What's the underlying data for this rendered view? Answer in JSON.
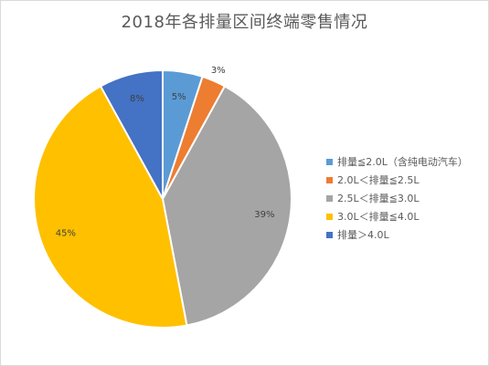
{
  "chart_data": {
    "type": "pie",
    "title": "2018年各排量区间终端零售情况",
    "categories": [
      "排量≦2.0L（含纯电动汽车）",
      "2.0L＜排量≦2.5L",
      "2.5L＜排量≦3.0L",
      "3.0L＜排量≦4.0L",
      "排量＞4.0L"
    ],
    "values": [
      5,
      3,
      39,
      45,
      8
    ],
    "data_labels": [
      "5%",
      "3%",
      "39%",
      "45%",
      "8%"
    ],
    "colors": [
      "#5b9bd5",
      "#ed7d31",
      "#a5a5a5",
      "#ffc000",
      "#4472c4"
    ],
    "legend_position": "right"
  }
}
